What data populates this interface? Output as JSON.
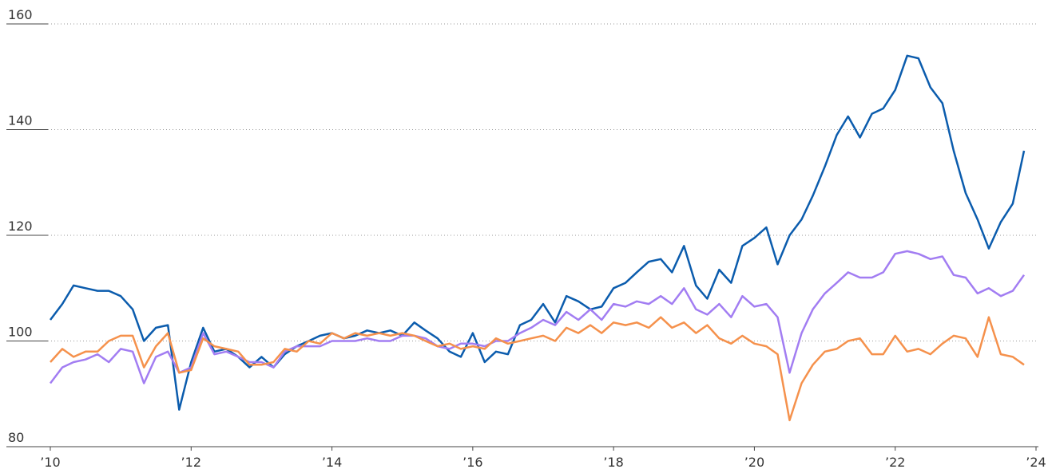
{
  "chart_data": {
    "type": "line",
    "x": [
      2010,
      2010.17,
      2010.33,
      2010.5,
      2010.67,
      2010.83,
      2011,
      2011.17,
      2011.33,
      2011.5,
      2011.67,
      2011.83,
      2012,
      2012.17,
      2012.33,
      2012.5,
      2012.67,
      2012.83,
      2013,
      2013.17,
      2013.33,
      2013.5,
      2013.67,
      2013.83,
      2014,
      2014.17,
      2014.33,
      2014.5,
      2014.67,
      2014.83,
      2015,
      2015.17,
      2015.33,
      2015.5,
      2015.67,
      2015.83,
      2016,
      2016.17,
      2016.33,
      2016.5,
      2016.67,
      2016.83,
      2017,
      2017.17,
      2017.33,
      2017.5,
      2017.67,
      2017.83,
      2018,
      2018.17,
      2018.33,
      2018.5,
      2018.67,
      2018.83,
      2019,
      2019.17,
      2019.33,
      2019.5,
      2019.67,
      2019.83,
      2020,
      2020.17,
      2020.33,
      2020.5,
      2020.67,
      2020.83,
      2021,
      2021.17,
      2021.33,
      2021.5,
      2021.67,
      2021.83,
      2022,
      2022.17,
      2022.33,
      2022.5,
      2022.67,
      2022.83,
      2023,
      2023.17,
      2023.33,
      2023.5,
      2023.67,
      2023.83
    ],
    "series": [
      {
        "color": "#0b5cad",
        "values": [
          104,
          107,
          110.5,
          110,
          109.5,
          109.5,
          108.5,
          106,
          100,
          102.5,
          103,
          87,
          96,
          102.5,
          98,
          98.5,
          97,
          95,
          97,
          95,
          97.5,
          99,
          100,
          101,
          101.5,
          100.5,
          101,
          102,
          101.5,
          102,
          101,
          103.5,
          102,
          100.5,
          98,
          97,
          101.5,
          96,
          98,
          97.5,
          103,
          104,
          107,
          103.5,
          108.5,
          107.5,
          106,
          106.5,
          110,
          111,
          113,
          115,
          115.5,
          113,
          118,
          110.5,
          108,
          113.5,
          111,
          118,
          119.5,
          121.5,
          114.5,
          120,
          123,
          127.5,
          133,
          139,
          142.5,
          138.5,
          143,
          144,
          147.5,
          154,
          153.5,
          148,
          145,
          136,
          128,
          123,
          117.5,
          122.5,
          126,
          136
        ]
      },
      {
        "color": "#a27df2",
        "values": [
          92,
          95,
          96,
          96.5,
          97.5,
          96,
          98.5,
          98,
          92,
          97,
          98,
          94,
          95,
          101.5,
          97.5,
          98,
          97,
          96,
          96,
          95,
          98,
          99,
          99,
          99,
          100,
          100,
          100,
          100.5,
          100,
          100,
          101,
          101,
          100.5,
          99,
          98.5,
          99.5,
          99.5,
          99,
          100,
          100,
          101.5,
          102.5,
          104,
          103,
          105.5,
          104,
          106,
          104,
          107,
          106.5,
          107.5,
          107,
          108.5,
          107,
          110,
          106,
          105,
          107,
          104.5,
          108.5,
          106.5,
          107,
          104.5,
          94,
          101.5,
          106,
          109,
          111,
          113,
          112,
          112,
          113,
          116.5,
          117,
          116.5,
          115.5,
          116,
          112.5,
          112,
          109,
          110,
          108.5,
          109.5,
          112.5
        ]
      },
      {
        "color": "#f5914c",
        "values": [
          96,
          98.5,
          97,
          98,
          98,
          100,
          101,
          101,
          95,
          99,
          101.5,
          94,
          94.5,
          100.5,
          99,
          98.5,
          98,
          95.5,
          95.5,
          96,
          98.5,
          98,
          100,
          99.5,
          101.5,
          100.5,
          101.5,
          101,
          101.5,
          101,
          101.5,
          101,
          100,
          99,
          99.5,
          98.5,
          99,
          98.5,
          100.5,
          99.5,
          100,
          100.5,
          101,
          100,
          102.5,
          101.5,
          103,
          101.5,
          103.5,
          103,
          103.5,
          102.5,
          104.5,
          102.5,
          103.5,
          101.5,
          103,
          100.5,
          99.5,
          101,
          99.5,
          99,
          97.5,
          85,
          92,
          95.5,
          98,
          98.5,
          100,
          100.5,
          97.5,
          97.5,
          101,
          98,
          98.5,
          97.5,
          99.5,
          101,
          100.5,
          97,
          104.5,
          97.5,
          97,
          95.5
        ]
      }
    ],
    "xlim": [
      2010,
      2024
    ],
    "xticks": [
      {
        "value": 2010,
        "label": "’10"
      },
      {
        "value": 2012,
        "label": "’12"
      },
      {
        "value": 2014,
        "label": "’14"
      },
      {
        "value": 2016,
        "label": "’16"
      },
      {
        "value": 2018,
        "label": "’18"
      },
      {
        "value": 2020,
        "label": "’20"
      },
      {
        "value": 2022,
        "label": "’22"
      },
      {
        "value": 2024,
        "label": "’24"
      }
    ],
    "ylim": [
      80,
      160
    ],
    "yticks": [
      80,
      100,
      120,
      140,
      160
    ],
    "grid": true
  }
}
